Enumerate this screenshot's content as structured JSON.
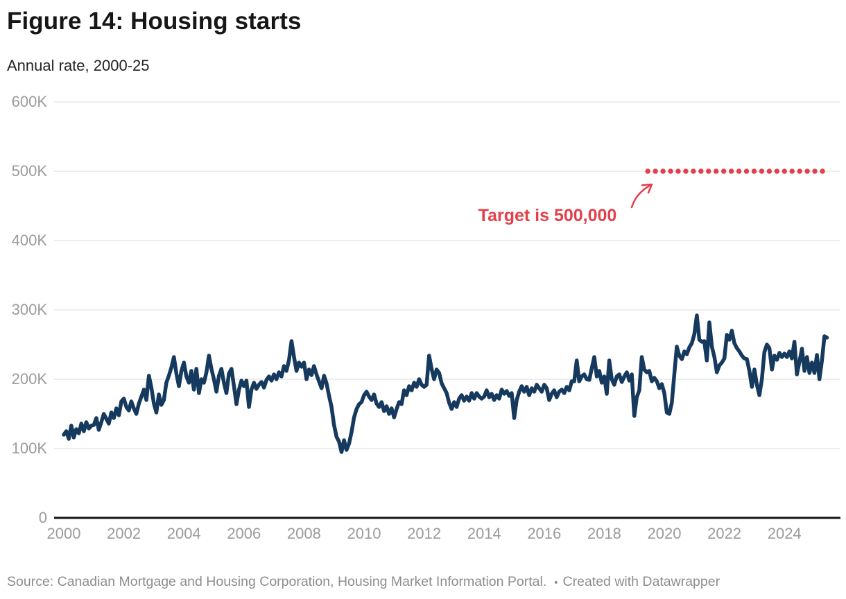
{
  "header": {
    "title": "Figure 14: Housing starts",
    "subtitle": "Annual rate, 2000-25"
  },
  "footer": {
    "source_text": "Source: Canadian Mortgage and Housing Corporation, Housing Market Information Portal.",
    "separator": "•",
    "credit_text": "Created with Datawrapper"
  },
  "colors": {
    "line": "#16395e",
    "target_red": "#e3404b",
    "gridline": "#e2e2e2",
    "axis_baseline": "#161616",
    "tick_label": "#9b9b9b",
    "title_text": "#161616",
    "subtitle_text": "#232323",
    "footer_text": "#8d8d8d"
  },
  "chart_data": {
    "type": "line",
    "title": "Figure 14: Housing starts",
    "subtitle": "Annual rate, 2000-25",
    "unit": "K",
    "value_unit": "thousands",
    "grid": "horizontal",
    "legend": "none",
    "x_range": [
      2000,
      2025.9
    ],
    "y_range_thousands": [
      0,
      600
    ],
    "y_ticks": [
      {
        "v": 0,
        "label": "0"
      },
      {
        "v": 100,
        "label": "100K"
      },
      {
        "v": 200,
        "label": "200K"
      },
      {
        "v": 300,
        "label": "300K"
      },
      {
        "v": 400,
        "label": "400K"
      },
      {
        "v": 500,
        "label": "500K"
      },
      {
        "v": 600,
        "label": "600K"
      }
    ],
    "x_ticks": [
      {
        "v": 2000,
        "label": "2000"
      },
      {
        "v": 2002,
        "label": "2002"
      },
      {
        "v": 2004,
        "label": "2004"
      },
      {
        "v": 2006,
        "label": "2006"
      },
      {
        "v": 2008,
        "label": "2008"
      },
      {
        "v": 2010,
        "label": "2010"
      },
      {
        "v": 2012,
        "label": "2012"
      },
      {
        "v": 2014,
        "label": "2014"
      },
      {
        "v": 2016,
        "label": "2016"
      },
      {
        "v": 2018,
        "label": "2018"
      },
      {
        "v": 2020,
        "label": "2020"
      },
      {
        "v": 2022,
        "label": "2022"
      },
      {
        "v": 2024,
        "label": "2024"
      }
    ],
    "target_line": {
      "value_thousands": 500,
      "label": "Target is 500,000",
      "color": "#e3404b",
      "style": "dotted",
      "x_start": 2019.45,
      "x_end": 2025.3
    },
    "series": [
      {
        "name": "Housing starts",
        "color": "#16395e",
        "start_year": 2000,
        "points_per_year": 12,
        "values_thousands": [
          120,
          125,
          114,
          133,
          116,
          128,
          122,
          136,
          125,
          138,
          129,
          133,
          134,
          144,
          127,
          138,
          150,
          143,
          136,
          152,
          144,
          158,
          148,
          168,
          172,
          160,
          155,
          168,
          158,
          150,
          165,
          175,
          185,
          170,
          205,
          188,
          165,
          152,
          178,
          163,
          170,
          195,
          205,
          217,
          232,
          208,
          190,
          212,
          224,
          204,
          195,
          212,
          185,
          215,
          180,
          200,
          195,
          210,
          234,
          215,
          200,
          182,
          205,
          215,
          195,
          180,
          208,
          215,
          190,
          164,
          185,
          198,
          190,
          198,
          160,
          185,
          195,
          186,
          192,
          196,
          188,
          199,
          204,
          198,
          207,
          200,
          210,
          204,
          219,
          212,
          228,
          255,
          232,
          212,
          224,
          218,
          224,
          200,
          214,
          206,
          219,
          207,
          197,
          187,
          205,
          194,
          176,
          160,
          134,
          117,
          110,
          95,
          112,
          98,
          107,
          124,
          145,
          157,
          164,
          167,
          177,
          182,
          175,
          170,
          178,
          165,
          160,
          167,
          154,
          161,
          150,
          158,
          145,
          157,
          167,
          164,
          184,
          177,
          190,
          184,
          195,
          189,
          200,
          192,
          189,
          192,
          234,
          215,
          200,
          214,
          209,
          194,
          187,
          180,
          166,
          157,
          167,
          160,
          172,
          177,
          169,
          175,
          169,
          180,
          172,
          180,
          175,
          172,
          175,
          184,
          174,
          179,
          170,
          177,
          172,
          185,
          179,
          183,
          176,
          180,
          144,
          170,
          182,
          190,
          182,
          189,
          177,
          187,
          182,
          192,
          187,
          182,
          192,
          187,
          170,
          179,
          184,
          174,
          182,
          185,
          180,
          189,
          184,
          197,
          197,
          227,
          197,
          204,
          207,
          200,
          199,
          216,
          232,
          204,
          212,
          195,
          204,
          179,
          227,
          200,
          192,
          204,
          207,
          196,
          204,
          210,
          198,
          207,
          147,
          174,
          184,
          232,
          214,
          210,
          212,
          197,
          202,
          197,
          187,
          193,
          180,
          152,
          150,
          166,
          207,
          247,
          234,
          229,
          240,
          236,
          246,
          252,
          265,
          292,
          257,
          254,
          255,
          227,
          282,
          247,
          232,
          210,
          220,
          224,
          230,
          264,
          257,
          270,
          252,
          245,
          240,
          234,
          230,
          229,
          212,
          189,
          214,
          192,
          177,
          200,
          239,
          250,
          245,
          214,
          234,
          228,
          238,
          232,
          237,
          232,
          240,
          230,
          254,
          207,
          225,
          244,
          212,
          232,
          209,
          224,
          209,
          235,
          200,
          227,
          262,
          260
        ]
      }
    ]
  }
}
